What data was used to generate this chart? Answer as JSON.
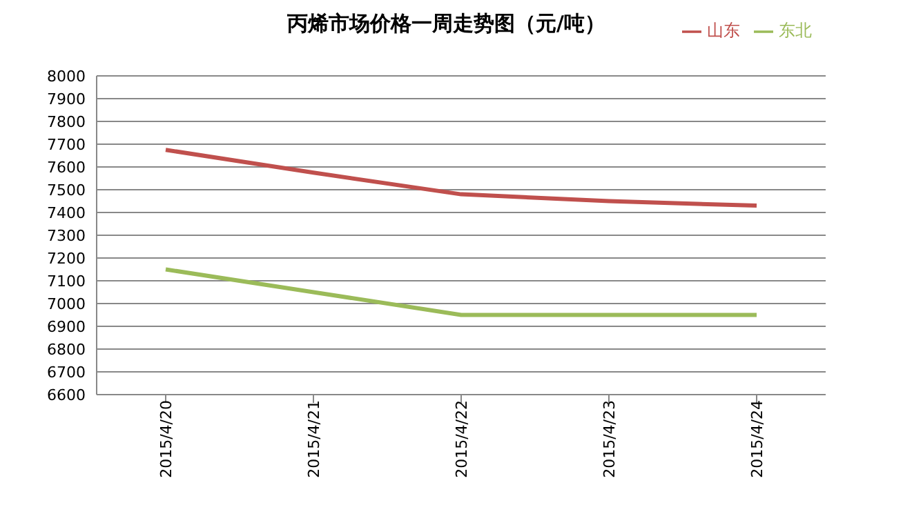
{
  "chart_data": {
    "type": "line",
    "title": "丙烯市场价格一周走势图（元/吨）",
    "categories": [
      "2015/4/20",
      "2015/4/21",
      "2015/4/22",
      "2015/4/23",
      "2015/4/24"
    ],
    "series": [
      {
        "name": "山东",
        "color": "#c0504d",
        "values": [
          7675,
          7575,
          7480,
          7450,
          7430
        ]
      },
      {
        "name": "东北",
        "color": "#9bbb59",
        "values": [
          7150,
          7050,
          6950,
          6950,
          6950
        ]
      }
    ],
    "ylim": [
      6600,
      8000
    ],
    "yticks": [
      6600,
      6700,
      6800,
      6900,
      7000,
      7100,
      7200,
      7300,
      7400,
      7500,
      7600,
      7700,
      7800,
      7900,
      8000
    ],
    "grid": "y",
    "legend": "top right",
    "marker": "none",
    "line_style": "solid"
  }
}
